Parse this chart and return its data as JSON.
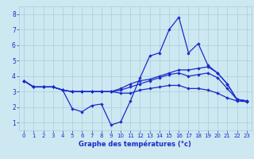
{
  "title": "Graphe des températures (°c)",
  "bg_color": "#cde8f0",
  "grid_color": "#aaccdd",
  "line_color": "#1a2acc",
  "xlim": [
    -0.5,
    23.5
  ],
  "ylim": [
    0.5,
    8.5
  ],
  "xticks": [
    0,
    1,
    2,
    3,
    4,
    5,
    6,
    7,
    8,
    9,
    10,
    11,
    12,
    13,
    14,
    15,
    16,
    17,
    18,
    19,
    20,
    21,
    22,
    23
  ],
  "yticks": [
    1,
    2,
    3,
    4,
    5,
    6,
    7,
    8
  ],
  "series1": [
    3.7,
    3.3,
    3.3,
    3.3,
    3.1,
    1.9,
    1.7,
    2.1,
    2.2,
    0.85,
    1.05,
    2.4,
    3.9,
    5.3,
    5.5,
    7.0,
    7.8,
    5.5,
    6.1,
    4.7,
    4.2,
    3.5,
    2.5,
    2.4
  ],
  "series2": [
    3.7,
    3.3,
    3.3,
    3.3,
    3.1,
    3.0,
    3.0,
    3.0,
    3.0,
    3.0,
    3.2,
    3.5,
    3.7,
    3.8,
    4.0,
    4.2,
    4.4,
    4.4,
    4.5,
    4.6,
    4.2,
    3.5,
    2.5,
    2.4
  ],
  "series3": [
    3.7,
    3.3,
    3.3,
    3.3,
    3.1,
    3.0,
    3.0,
    3.0,
    3.0,
    3.0,
    3.1,
    3.3,
    3.5,
    3.7,
    3.9,
    4.1,
    4.2,
    4.0,
    4.1,
    4.2,
    3.9,
    3.2,
    2.5,
    2.4
  ],
  "series4": [
    3.7,
    3.3,
    3.3,
    3.3,
    3.1,
    3.0,
    3.0,
    3.0,
    3.0,
    3.0,
    2.9,
    2.9,
    3.1,
    3.2,
    3.3,
    3.4,
    3.4,
    3.2,
    3.2,
    3.1,
    2.9,
    2.6,
    2.4,
    2.35
  ]
}
